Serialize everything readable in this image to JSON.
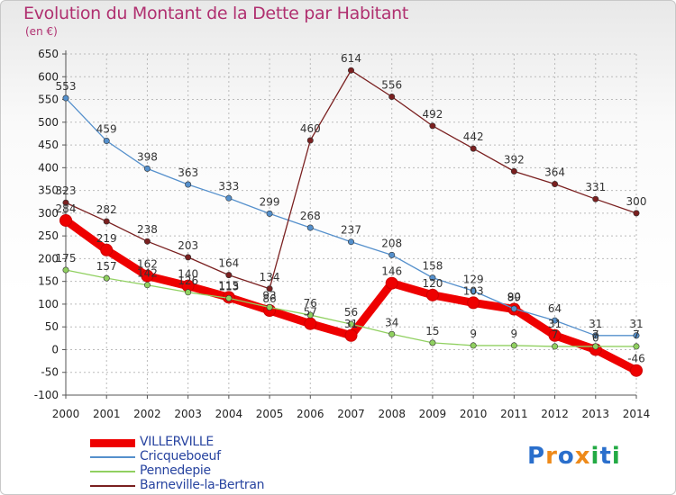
{
  "header": {
    "title": "Evolution du Montant de la Dette par Habitant",
    "subtitle": "(en €)"
  },
  "colors": {
    "title": "#b03070",
    "axis_text": "#222222",
    "grid": "#bbbbbb",
    "legend_text": "#2844a0"
  },
  "logo": {
    "letters": [
      "P",
      "r",
      "o",
      "x",
      "i",
      "t",
      "i"
    ],
    "colors": [
      "#2a6fcc",
      "#ee8a1a",
      "#2a6fcc",
      "#ee8a1a",
      "#22aa44",
      "#2a6fcc",
      "#22aa44"
    ]
  },
  "chart_data": {
    "type": "line",
    "title": "Evolution du Montant de la Dette par Habitant",
    "subtitle": "(en €)",
    "x": [
      "2000",
      "2001",
      "2002",
      "2003",
      "2004",
      "2005",
      "2006",
      "2007",
      "2008",
      "2009",
      "2010",
      "2011",
      "2012",
      "2013",
      "2014"
    ],
    "ylim": [
      -100,
      650
    ],
    "yticks": [
      -100,
      -50,
      0,
      50,
      100,
      150,
      200,
      250,
      300,
      350,
      400,
      450,
      500,
      550,
      600,
      650
    ],
    "grid": true,
    "legend_position": "bottom-left",
    "series": [
      {
        "name": "VILLERVILLE",
        "color": "#ee0000",
        "values": [
          284,
          219,
          162,
          140,
          115,
          86,
          57,
          31,
          146,
          120,
          103,
          89,
          31,
          0,
          -46
        ],
        "labels": [
          "284",
          "219",
          "162",
          "140",
          "115",
          "86",
          "57",
          "31",
          "146",
          "120",
          "103",
          "89",
          "31",
          "0",
          "-46"
        ]
      },
      {
        "name": "Cricqueboeuf",
        "color": "#5590cc",
        "values": [
          553,
          459,
          398,
          363,
          333,
          299,
          268,
          237,
          208,
          158,
          129,
          90,
          64,
          31,
          31
        ],
        "labels": [
          "553",
          "459",
          "398",
          "363",
          "333",
          "299",
          "268",
          "237",
          "208",
          "158",
          "129",
          "90",
          "64",
          "31",
          "31"
        ]
      },
      {
        "name": "Pennedepie",
        "color": "#90d060",
        "values": [
          175,
          157,
          142,
          126,
          113,
          93,
          76,
          56,
          34,
          15,
          9,
          9,
          7,
          7,
          7
        ],
        "labels": [
          "175",
          "157",
          "142",
          "126",
          "113",
          "93",
          "76",
          "56",
          "34",
          "15",
          "9",
          "9",
          "7",
          "7",
          "7"
        ]
      },
      {
        "name": "Barneville-la-Bertran",
        "color": "#7a2020",
        "values": [
          323,
          282,
          238,
          203,
          164,
          134,
          460,
          614,
          556,
          492,
          442,
          392,
          364,
          331,
          300
        ],
        "labels": [
          "323",
          "282",
          "238",
          "203",
          "164",
          "134",
          "460",
          "614",
          "556",
          "492",
          "442",
          "392",
          "364",
          "331",
          "300"
        ]
      }
    ]
  }
}
